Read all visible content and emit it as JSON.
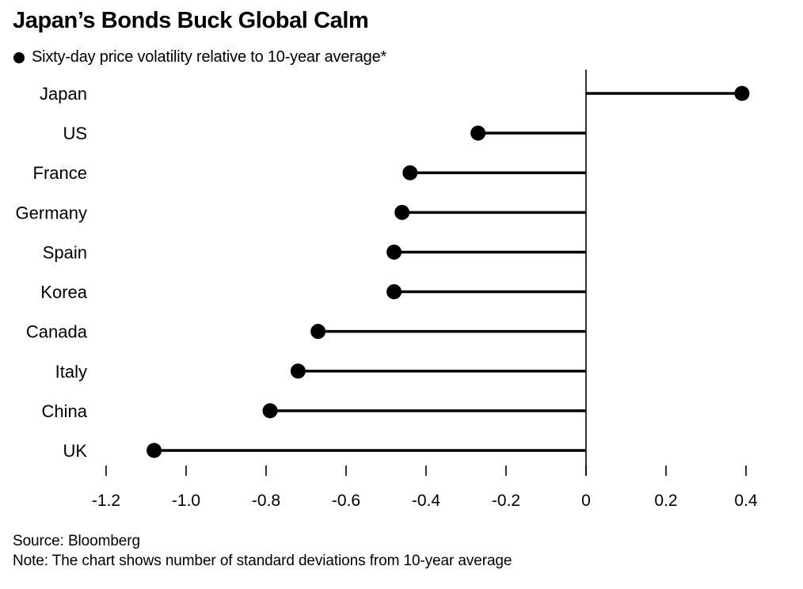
{
  "header": {
    "title": "Japan’s Bonds Buck Global Calm",
    "legend_label": "Sixty-day price volatility relative to 10-year average*"
  },
  "footer": {
    "source": "Source: Bloomberg",
    "note": "Note: The chart shows number of standard deviations from 10-year average"
  },
  "colors": {
    "foreground": "#000000",
    "background": "#ffffff"
  },
  "chart_data": {
    "type": "bar",
    "variant": "horizontal-lollipop",
    "title": "Japan’s Bonds Buck Global Calm",
    "legend": "Sixty-day price volatility relative to 10-year average*",
    "legend_position": "top-left",
    "categories": [
      "Japan",
      "US",
      "France",
      "Germany",
      "Spain",
      "Korea",
      "Canada",
      "Italy",
      "China",
      "UK"
    ],
    "values": [
      0.39,
      -0.27,
      -0.44,
      -0.46,
      -0.48,
      -0.48,
      -0.67,
      -0.72,
      -0.79,
      -1.08
    ],
    "baseline": 0,
    "xlabel": "",
    "ylabel": "",
    "xlim": [
      -1.3,
      0.55
    ],
    "xticks": [
      -1.2,
      -1.0,
      -0.8,
      -0.6,
      -0.4,
      -0.2,
      0,
      0.2,
      0.4
    ],
    "xtick_labels": [
      "-1.2",
      "-1.0",
      "-0.8",
      "-0.6",
      "-0.4",
      "-0.2",
      "0",
      "0.2",
      "0.4"
    ],
    "grid": false,
    "source": "Source: Bloomberg",
    "note": "Note: The chart shows number of standard deviations from 10-year average"
  }
}
